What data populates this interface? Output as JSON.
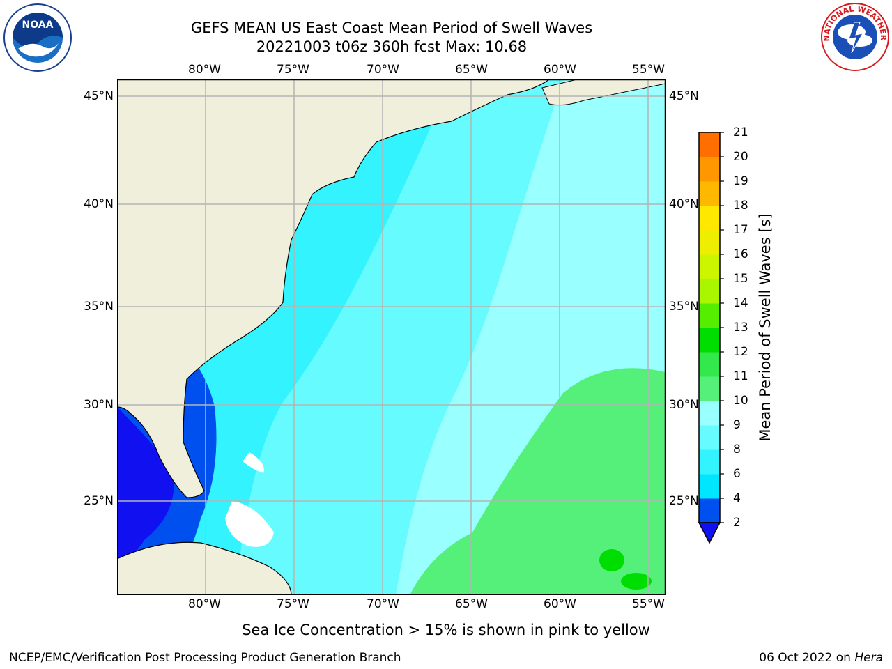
{
  "header": {
    "title_line1": "GEFS MEAN US East Coast Mean Period of Swell Waves",
    "title_line2": "20221003 t06z 360h fcst   Max: 10.68"
  },
  "logos": {
    "left": "NOAA",
    "right": "NATIONAL WEATHER SERVICE"
  },
  "map": {
    "lon_labels": [
      "80°W",
      "75°W",
      "70°W",
      "65°W",
      "60°W",
      "55°W"
    ],
    "lat_labels": [
      "45°N",
      "40°N",
      "35°N",
      "30°N",
      "25°N"
    ],
    "lon_range": [
      -85,
      -54
    ],
    "lat_range": [
      20.5,
      46
    ],
    "colors": {
      "land": "#efefdc",
      "grid": "#b4b4b4",
      "missing": "#ffffff"
    }
  },
  "colorbar": {
    "label": "Mean Period of Swell Waves [s]",
    "ticks": [
      "2",
      "4",
      "6",
      "8",
      "9",
      "10",
      "11",
      "12",
      "13",
      "14",
      "15",
      "16",
      "17",
      "18",
      "19",
      "20",
      "21"
    ],
    "bin_colors": [
      "#0050f0",
      "#00e6ff",
      "#33f3ff",
      "#66fbff",
      "#99ffff",
      "#55f07a",
      "#33e84a",
      "#00dd00",
      "#55ee00",
      "#aaf500",
      "#ccf500",
      "#eeee00",
      "#ffe800",
      "#ffb800",
      "#ff9800",
      "#ff6e00",
      "#ff3c00",
      "#ff1000"
    ],
    "extend_color": "#1010f0"
  },
  "footer": {
    "note": "Sea Ice Concentration > 15% is shown in pink to yellow",
    "credit_left": "NCEP/EMC/Verification Post Processing Product Generation Branch",
    "date": "06 Oct 2022 on",
    "machine": "Hera"
  }
}
